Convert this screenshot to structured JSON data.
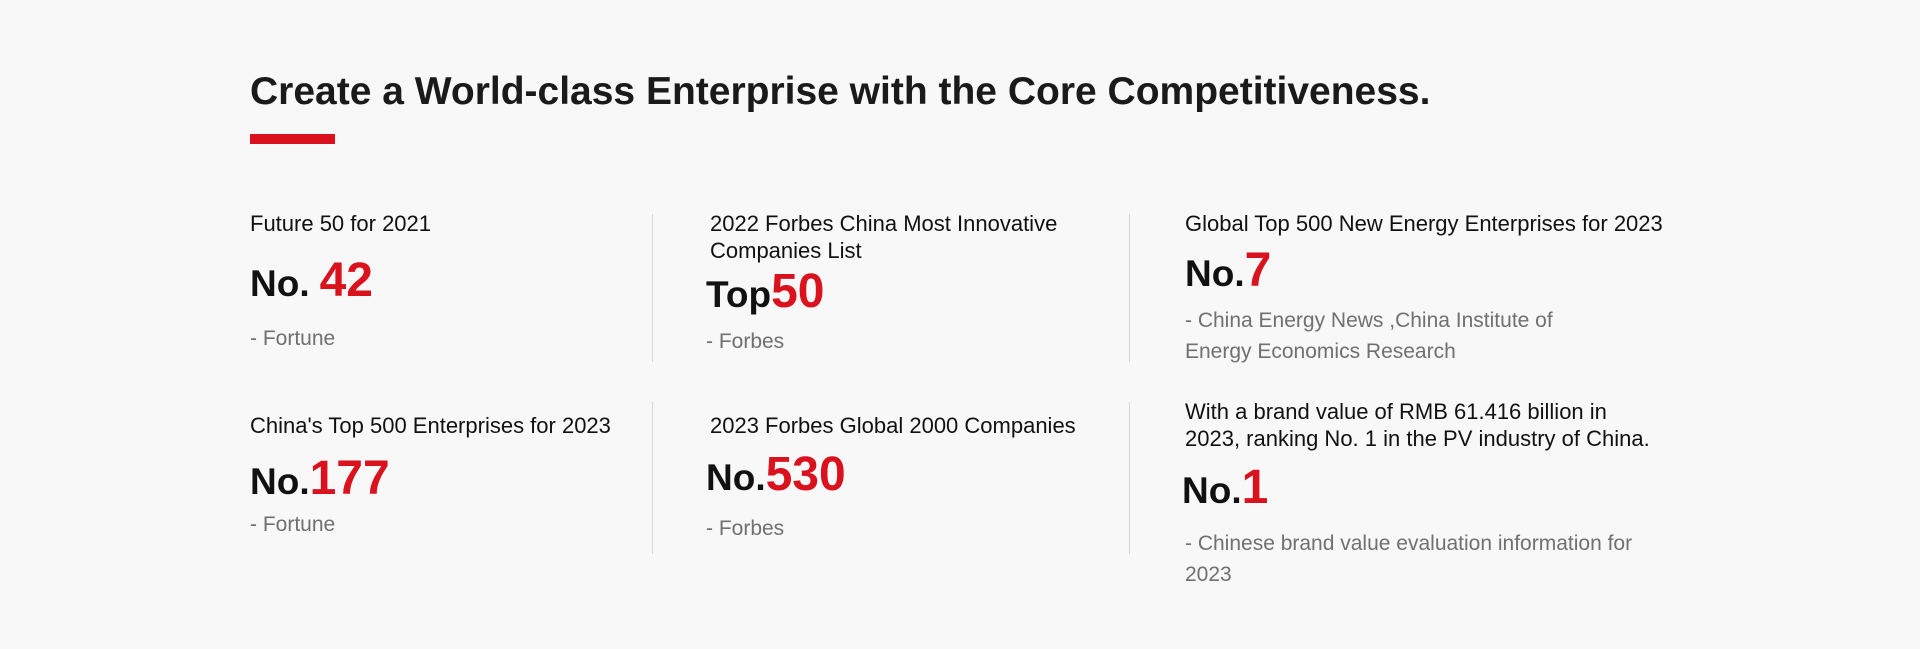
{
  "section": {
    "title": "Create a World-class Enterprise with the Core Competitiveness."
  },
  "awards": [
    {
      "title": "Future 50 for 2021",
      "prefix": "No.",
      "number": "42",
      "source": "- Fortune"
    },
    {
      "title": "2022 Forbes China Most Innovative Companies List",
      "prefix": "Top",
      "number": "50",
      "source": "- Forbes"
    },
    {
      "title": "Global Top 500 New Energy Enterprises for 2023",
      "prefix": "No.",
      "number": "7",
      "source": "- China Energy News ,China Institute of Energy Economics Research"
    },
    {
      "title": "China's Top 500 Enterprises for 2023",
      "prefix": "No.",
      "number": "177",
      "source": "- Fortune"
    },
    {
      "title": "2023 Forbes Global 2000 Companies",
      "prefix": "No.",
      "number": "530",
      "source": "- Forbes"
    },
    {
      "title": "With a brand value of RMB 61.416 billion in 2023, ranking No. 1 in the PV industry of China.",
      "prefix": "No.",
      "number": "1",
      "source": "- Chinese brand value evaluation information for 2023"
    }
  ],
  "colors": {
    "accent": "#d9121e",
    "background": "#f8f8f8",
    "text": "#111111",
    "muted": "#707070"
  }
}
